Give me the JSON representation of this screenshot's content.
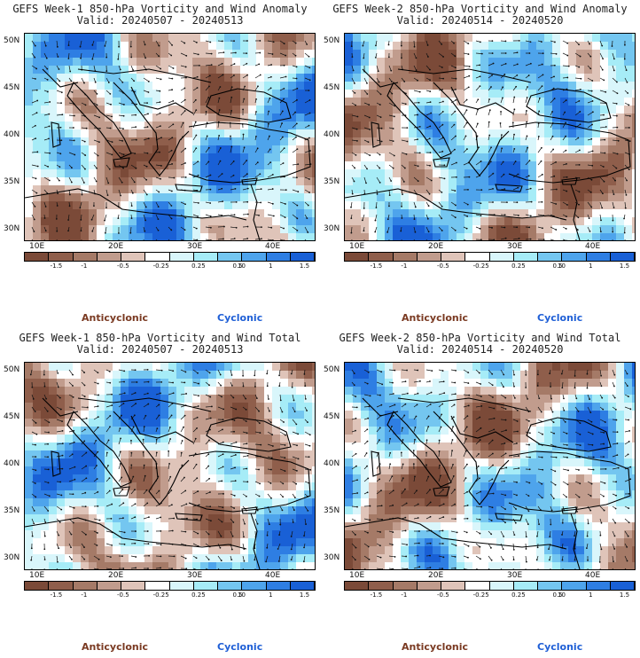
{
  "panels": [
    {
      "title": "GEFS Week-1 850-hPa Vorticity and Wind Anomaly",
      "valid": "Valid: 20240507 - 20240513",
      "variant": 0
    },
    {
      "title": "GEFS Week-2 850-hPa Vorticity and Wind Anomaly",
      "valid": "Valid: 20240514 - 20240520",
      "variant": 1
    },
    {
      "title": "GEFS Week-1 850-hPa Vorticity and Wind Total",
      "valid": "Valid: 20240507 - 20240513",
      "variant": 2
    },
    {
      "title": "GEFS Week-2 850-hPa Vorticity and Wind Total",
      "valid": "Valid: 20240514 - 20240520",
      "variant": 3
    }
  ],
  "axes": {
    "lat_labels": [
      "50N",
      "45N",
      "40N",
      "35N",
      "30N"
    ],
    "lon_labels": [
      "10E",
      "20E",
      "30E",
      "40E"
    ]
  },
  "colorbar": {
    "labels": [
      "-1.5",
      "-1",
      "-0.5",
      "-0.25",
      "0.25",
      "0.5",
      "1",
      "1.5"
    ],
    "scale_note": "10",
    "colors": [
      "#7b4a38",
      "#8f5e4b",
      "#a57a67",
      "#c19c8d",
      "#dfc4b9",
      "#ffffff",
      "#d9f6fb",
      "#a6ecf7",
      "#74c6f0",
      "#4ea4ec",
      "#2e7ee3",
      "#1960d6"
    ]
  },
  "legend": {
    "anticyclonic": "Anticyclonic",
    "cyclonic": "Cyclonic"
  }
}
